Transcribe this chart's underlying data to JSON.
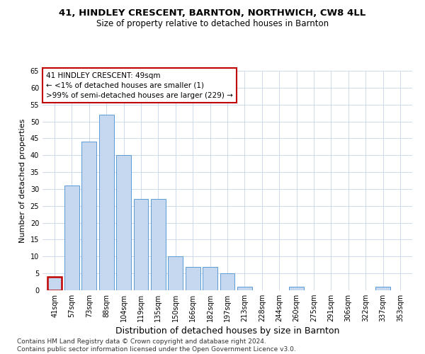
{
  "title1": "41, HINDLEY CRESCENT, BARNTON, NORTHWICH, CW8 4LL",
  "title2": "Size of property relative to detached houses in Barnton",
  "xlabel": "Distribution of detached houses by size in Barnton",
  "ylabel": "Number of detached properties",
  "categories": [
    "41sqm",
    "57sqm",
    "73sqm",
    "88sqm",
    "104sqm",
    "119sqm",
    "135sqm",
    "150sqm",
    "166sqm",
    "182sqm",
    "197sqm",
    "213sqm",
    "228sqm",
    "244sqm",
    "260sqm",
    "275sqm",
    "291sqm",
    "306sqm",
    "322sqm",
    "337sqm",
    "353sqm"
  ],
  "values": [
    4,
    31,
    44,
    52,
    40,
    27,
    27,
    10,
    7,
    7,
    5,
    1,
    0,
    0,
    1,
    0,
    0,
    0,
    0,
    1,
    0
  ],
  "bar_color": "#c5d8f0",
  "bar_edge_color": "#5b9bd5",
  "highlight_bar_index": 0,
  "highlight_bar_edge_color": "#c00000",
  "ylim": [
    0,
    65
  ],
  "yticks": [
    0,
    5,
    10,
    15,
    20,
    25,
    30,
    35,
    40,
    45,
    50,
    55,
    60,
    65
  ],
  "annotation_text": "41 HINDLEY CRESCENT: 49sqm\n← <1% of detached houses are smaller (1)\n>99% of semi-detached houses are larger (229) →",
  "annotation_box_color": "#ffffff",
  "annotation_box_edge_color": "#c00000",
  "footer_text": "Contains HM Land Registry data © Crown copyright and database right 2024.\nContains public sector information licensed under the Open Government Licence v3.0.",
  "bg_color": "#ffffff",
  "grid_color": "#c8d4e8",
  "title1_fontsize": 9.5,
  "title2_fontsize": 8.5,
  "xlabel_fontsize": 9,
  "ylabel_fontsize": 8,
  "tick_fontsize": 7,
  "annotation_fontsize": 7.5,
  "footer_fontsize": 6.5
}
